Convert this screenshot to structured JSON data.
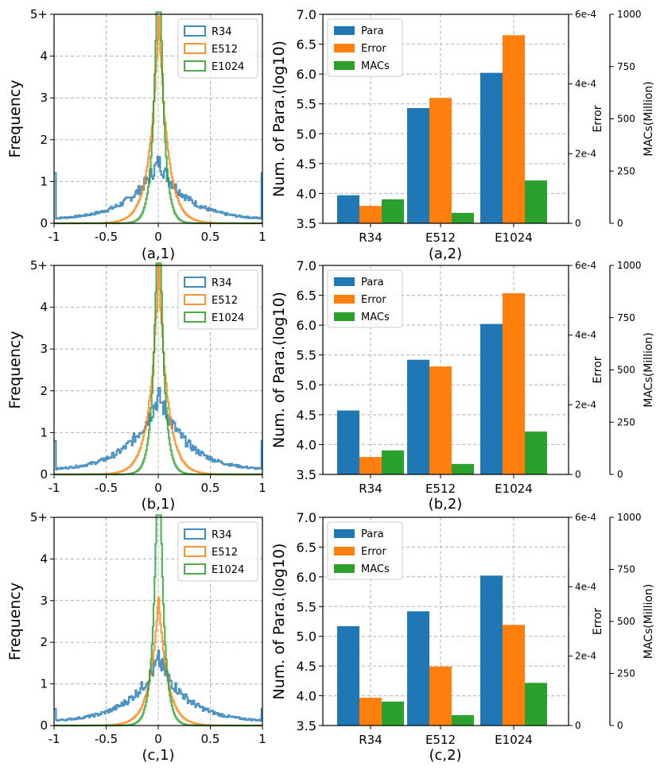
{
  "colors": {
    "blue": "#1f77b4",
    "orange": "#ff7f0e",
    "green": "#2ca02c",
    "grid": "#b0b0b0"
  },
  "chart_data": [
    {
      "type": "line",
      "subtitle": "(a,1)",
      "ylabel": "Frequency",
      "xlim": [
        -1,
        1
      ],
      "ylim": [
        0,
        5
      ],
      "xticks": [
        "-1",
        "-0.5",
        "0",
        "0.5",
        "1"
      ],
      "yticks": [
        "0",
        "1",
        "2",
        "3",
        "4",
        "5+"
      ],
      "legend": [
        "R34",
        "E512",
        "E1024"
      ],
      "legend_position": "top-right",
      "series": [
        {
          "name": "R34",
          "shape": "broad",
          "peak": 1.4,
          "edge": 1.2
        },
        {
          "name": "E512",
          "shape": "narrow",
          "peak": 5.0
        },
        {
          "name": "E1024",
          "shape": "spike",
          "peak": 5.0
        }
      ]
    },
    {
      "type": "bar",
      "subtitle": "(a,2)",
      "categories": [
        "R34",
        "E512",
        "E1024"
      ],
      "ylabel": "Num. of Para.(log10)",
      "ylim": [
        3.5,
        7.0
      ],
      "yticks": [
        "3.5",
        "4.0",
        "4.5",
        "5.0",
        "5.5",
        "6.0",
        "6.5",
        "7.0"
      ],
      "error_axis": {
        "label": "Error",
        "ylim": [
          0,
          0.0006
        ],
        "ticks": [
          "0",
          "2e-4",
          "4e-4",
          "6e-4"
        ]
      },
      "macs_axis": {
        "label": "MACs(Million)",
        "ylim": [
          0,
          1000
        ],
        "ticks": [
          "0",
          "250",
          "500",
          "750",
          "1000"
        ]
      },
      "legend": [
        "Para",
        "Error",
        "MACs"
      ],
      "legend_position": "top-left",
      "series": [
        {
          "name": "Para",
          "values": [
            3.97,
            5.43,
            6.02
          ]
        },
        {
          "name": "Error",
          "values": [
            5e-05,
            0.00036,
            0.00054
          ]
        },
        {
          "name": "MACs",
          "values": [
            115,
            50,
            205
          ]
        }
      ]
    },
    {
      "type": "line",
      "subtitle": "(b,1)",
      "ylabel": "Frequency",
      "xlim": [
        -1,
        1
      ],
      "ylim": [
        0,
        5
      ],
      "xticks": [
        "-1",
        "-0.5",
        "0",
        "0.5",
        "1"
      ],
      "yticks": [
        "0",
        "1",
        "2",
        "3",
        "4",
        "5+"
      ],
      "legend": [
        "R34",
        "E512",
        "E1024"
      ],
      "legend_position": "top-right",
      "series": [
        {
          "name": "R34",
          "shape": "broad",
          "peak": 1.8,
          "edge": 0.8
        },
        {
          "name": "E512",
          "shape": "narrow",
          "peak": 5.0
        },
        {
          "name": "E1024",
          "shape": "spike",
          "peak": 5.0
        }
      ]
    },
    {
      "type": "bar",
      "subtitle": "(b,2)",
      "categories": [
        "R34",
        "E512",
        "E1024"
      ],
      "ylabel": "Num. of Para.(log10)",
      "ylim": [
        3.5,
        7.0
      ],
      "yticks": [
        "3.5",
        "4.0",
        "4.5",
        "5.0",
        "5.5",
        "6.0",
        "6.5",
        "7.0"
      ],
      "error_axis": {
        "label": "Error",
        "ylim": [
          0,
          0.0006
        ],
        "ticks": [
          "0",
          "2e-4",
          "4e-4",
          "6e-4"
        ]
      },
      "macs_axis": {
        "label": "MACs(Million)",
        "ylim": [
          0,
          1000
        ],
        "ticks": [
          "0",
          "250",
          "500",
          "750",
          "1000"
        ]
      },
      "legend": [
        "Para",
        "Error",
        "MACs"
      ],
      "legend_position": "top-left",
      "series": [
        {
          "name": "Para",
          "values": [
            4.57,
            5.42,
            6.02
          ]
        },
        {
          "name": "Error",
          "values": [
            5e-05,
            0.00031,
            0.00052
          ]
        },
        {
          "name": "MACs",
          "values": [
            115,
            50,
            205
          ]
        }
      ]
    },
    {
      "type": "line",
      "subtitle": "(c,1)",
      "ylabel": "Frequency",
      "xlim": [
        -1,
        1
      ],
      "ylim": [
        0,
        5
      ],
      "xticks": [
        "-1",
        "-0.5",
        "0",
        "0.5",
        "1"
      ],
      "yticks": [
        "0",
        "1",
        "2",
        "3",
        "4",
        "5+"
      ],
      "legend": [
        "R34",
        "E512",
        "E1024"
      ],
      "legend_position": "top-right",
      "series": [
        {
          "name": "R34",
          "shape": "broad",
          "peak": 1.5,
          "edge": 0.4
        },
        {
          "name": "E512",
          "shape": "narrow",
          "peak": 3.1
        },
        {
          "name": "E1024",
          "shape": "spike",
          "peak": 5.0
        }
      ]
    },
    {
      "type": "bar",
      "subtitle": "(c,2)",
      "categories": [
        "R34",
        "E512",
        "E1024"
      ],
      "ylabel": "Num. of Para.(log10)",
      "ylim": [
        3.5,
        7.0
      ],
      "yticks": [
        "3.5",
        "4.0",
        "4.5",
        "5.0",
        "5.5",
        "6.0",
        "6.5",
        "7.0"
      ],
      "error_axis": {
        "label": "Error",
        "ylim": [
          0,
          0.0006
        ],
        "ticks": [
          "0",
          "2e-4",
          "4e-4",
          "6e-4"
        ]
      },
      "macs_axis": {
        "label": "MACs(Million)",
        "ylim": [
          0,
          1000
        ],
        "ticks": [
          "0",
          "250",
          "500",
          "750",
          "1000"
        ]
      },
      "legend": [
        "Para",
        "Error",
        "MACs"
      ],
      "legend_position": "top-left",
      "series": [
        {
          "name": "Para",
          "values": [
            5.17,
            5.42,
            6.02
          ]
        },
        {
          "name": "Error",
          "values": [
            8e-05,
            0.00017,
            0.00029
          ]
        },
        {
          "name": "MACs",
          "values": [
            115,
            50,
            205
          ]
        }
      ]
    }
  ]
}
